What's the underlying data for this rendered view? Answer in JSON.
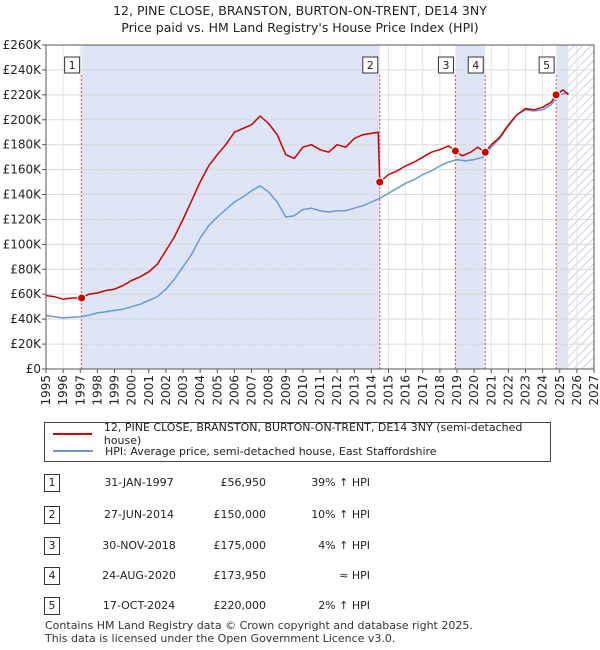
{
  "title_line1": "12, PINE CLOSE, BRANSTON, BURTON-ON-TRENT, DE14 3NY",
  "title_line2": "Price paid vs. HM Land Registry's House Price Index (HPI)",
  "colors": {
    "property": "#cc0000",
    "hpi": "#6a9ad0",
    "shade": "#dde5f7",
    "hatch": "#b9c4d8",
    "marker_line": "#e05050"
  },
  "legend": {
    "property_label": "12, PINE CLOSE, BRANSTON, BURTON-ON-TRENT, DE14 3NY (semi-detached house)",
    "hpi_label": "HPI: Average price, semi-detached house, East Staffordshire"
  },
  "transactions": [
    {
      "num": "1",
      "date": "31-JAN-1997",
      "price": "£56,950",
      "hpi": "39% ↑ HPI"
    },
    {
      "num": "2",
      "date": "27-JUN-2014",
      "price": "£150,000",
      "hpi": "10% ↑ HPI"
    },
    {
      "num": "3",
      "date": "30-NOV-2018",
      "price": "£175,000",
      "hpi": "4% ↑ HPI"
    },
    {
      "num": "4",
      "date": "24-AUG-2020",
      "price": "£173,950",
      "hpi": "≈ HPI"
    },
    {
      "num": "5",
      "date": "17-OCT-2024",
      "price": "£220,000",
      "hpi": "2% ↑ HPI"
    }
  ],
  "footer": "Contains HM Land Registry data © Crown copyright and database right 2025.\nThis data is licensed under the Open Government Licence v3.0.",
  "chart_data": {
    "type": "line",
    "x_range": [
      1995,
      2027
    ],
    "ylim": [
      0,
      260000
    ],
    "y_ticks": [
      0,
      20000,
      40000,
      60000,
      80000,
      100000,
      120000,
      140000,
      160000,
      180000,
      200000,
      220000,
      240000,
      260000
    ],
    "y_tick_labels": [
      "£0",
      "£20K",
      "£40K",
      "£60K",
      "£80K",
      "£100K",
      "£120K",
      "£140K",
      "£160K",
      "£180K",
      "£200K",
      "£220K",
      "£240K",
      "£260K"
    ],
    "x_ticks": [
      "1995",
      "1996",
      "1997",
      "1998",
      "1999",
      "2000",
      "2001",
      "2002",
      "2003",
      "2004",
      "2005",
      "2006",
      "2007",
      "2008",
      "2009",
      "2010",
      "2011",
      "2012",
      "2013",
      "2014",
      "2015",
      "2016",
      "2017",
      "2018",
      "2019",
      "2020",
      "2021",
      "2022",
      "2023",
      "2024",
      "2025",
      "2026",
      "2027"
    ],
    "shaded_ranges": [
      [
        1997.08,
        2014.49
      ],
      [
        2018.91,
        2020.65
      ],
      [
        2024.79,
        2025.5
      ]
    ],
    "future_from": 2025.5,
    "sales": [
      {
        "label": "1",
        "x": 1997.08,
        "y": 56950
      },
      {
        "label": "2",
        "x": 2014.49,
        "y": 150000
      },
      {
        "label": "3",
        "x": 2018.91,
        "y": 175000
      },
      {
        "label": "4",
        "x": 2020.65,
        "y": 173950
      },
      {
        "label": "5",
        "x": 2024.79,
        "y": 220000
      }
    ],
    "series": [
      {
        "name": "12, PINE CLOSE, BRANSTON, BURTON-ON-TRENT, DE14 3NY (semi-detached house)",
        "color": "#cc0000",
        "points": [
          [
            1995.0,
            59000
          ],
          [
            1995.5,
            58000
          ],
          [
            1996.0,
            56000
          ],
          [
            1996.5,
            57000
          ],
          [
            1997.08,
            56950
          ],
          [
            1997.5,
            60000
          ],
          [
            1998.0,
            61000
          ],
          [
            1998.5,
            63000
          ],
          [
            1999.0,
            64000
          ],
          [
            1999.5,
            67000
          ],
          [
            2000.0,
            71000
          ],
          [
            2000.5,
            74000
          ],
          [
            2001.0,
            78000
          ],
          [
            2001.5,
            84000
          ],
          [
            2002.0,
            95000
          ],
          [
            2002.5,
            106000
          ],
          [
            2003.0,
            120000
          ],
          [
            2003.5,
            135000
          ],
          [
            2004.0,
            150000
          ],
          [
            2004.5,
            163000
          ],
          [
            2005.0,
            172000
          ],
          [
            2005.5,
            180000
          ],
          [
            2006.0,
            190000
          ],
          [
            2006.5,
            193000
          ],
          [
            2007.0,
            196000
          ],
          [
            2007.5,
            203000
          ],
          [
            2008.0,
            197000
          ],
          [
            2008.5,
            188000
          ],
          [
            2009.0,
            172000
          ],
          [
            2009.5,
            169000
          ],
          [
            2010.0,
            178000
          ],
          [
            2010.5,
            180000
          ],
          [
            2011.0,
            176000
          ],
          [
            2011.5,
            174000
          ],
          [
            2012.0,
            180000
          ],
          [
            2012.5,
            178000
          ],
          [
            2013.0,
            185000
          ],
          [
            2013.5,
            188000
          ],
          [
            2014.4,
            190000
          ],
          [
            2014.49,
            150000
          ],
          [
            2015.0,
            156000
          ],
          [
            2015.5,
            159000
          ],
          [
            2016.0,
            163000
          ],
          [
            2016.5,
            166000
          ],
          [
            2017.0,
            170000
          ],
          [
            2017.5,
            174000
          ],
          [
            2018.0,
            176000
          ],
          [
            2018.5,
            179000
          ],
          [
            2018.91,
            175000
          ],
          [
            2019.3,
            171000
          ],
          [
            2019.8,
            174000
          ],
          [
            2020.2,
            178000
          ],
          [
            2020.65,
            173950
          ],
          [
            2021.0,
            180000
          ],
          [
            2021.5,
            186000
          ],
          [
            2022.0,
            196000
          ],
          [
            2022.5,
            204000
          ],
          [
            2023.0,
            209000
          ],
          [
            2023.5,
            208000
          ],
          [
            2024.0,
            210000
          ],
          [
            2024.5,
            214000
          ],
          [
            2024.79,
            220000
          ],
          [
            2025.2,
            224000
          ],
          [
            2025.5,
            220000
          ]
        ]
      },
      {
        "name": "HPI: Average price, semi-detached house, East Staffordshire",
        "color": "#6a9ad0",
        "points": [
          [
            1995.0,
            43000
          ],
          [
            1995.5,
            42000
          ],
          [
            1996.0,
            41000
          ],
          [
            1996.5,
            41500
          ],
          [
            1997.0,
            42000
          ],
          [
            1997.5,
            43000
          ],
          [
            1998.0,
            45000
          ],
          [
            1998.5,
            46000
          ],
          [
            1999.0,
            47000
          ],
          [
            1999.5,
            48000
          ],
          [
            2000.0,
            50000
          ],
          [
            2000.5,
            52000
          ],
          [
            2001.0,
            55000
          ],
          [
            2001.5,
            58000
          ],
          [
            2002.0,
            64000
          ],
          [
            2002.5,
            72000
          ],
          [
            2003.0,
            82000
          ],
          [
            2003.5,
            92000
          ],
          [
            2004.0,
            105000
          ],
          [
            2004.5,
            115000
          ],
          [
            2005.0,
            122000
          ],
          [
            2005.5,
            128000
          ],
          [
            2006.0,
            134000
          ],
          [
            2006.5,
            138000
          ],
          [
            2007.0,
            143000
          ],
          [
            2007.5,
            147000
          ],
          [
            2008.0,
            142000
          ],
          [
            2008.5,
            134000
          ],
          [
            2009.0,
            122000
          ],
          [
            2009.5,
            123000
          ],
          [
            2010.0,
            128000
          ],
          [
            2010.5,
            129000
          ],
          [
            2011.0,
            127000
          ],
          [
            2011.5,
            126000
          ],
          [
            2012.0,
            127000
          ],
          [
            2012.5,
            127000
          ],
          [
            2013.0,
            129000
          ],
          [
            2013.5,
            131000
          ],
          [
            2014.0,
            134000
          ],
          [
            2014.5,
            137000
          ],
          [
            2015.0,
            141000
          ],
          [
            2015.5,
            145000
          ],
          [
            2016.0,
            149000
          ],
          [
            2016.5,
            152000
          ],
          [
            2017.0,
            156000
          ],
          [
            2017.5,
            159000
          ],
          [
            2018.0,
            163000
          ],
          [
            2018.5,
            166000
          ],
          [
            2019.0,
            168000
          ],
          [
            2019.5,
            167000
          ],
          [
            2020.0,
            168000
          ],
          [
            2020.5,
            170000
          ],
          [
            2021.0,
            178000
          ],
          [
            2021.5,
            185000
          ],
          [
            2022.0,
            195000
          ],
          [
            2022.5,
            204000
          ],
          [
            2023.0,
            208000
          ],
          [
            2023.5,
            207000
          ],
          [
            2024.0,
            208000
          ],
          [
            2024.5,
            212000
          ],
          [
            2025.0,
            220000
          ],
          [
            2025.5,
            222000
          ]
        ]
      }
    ]
  }
}
